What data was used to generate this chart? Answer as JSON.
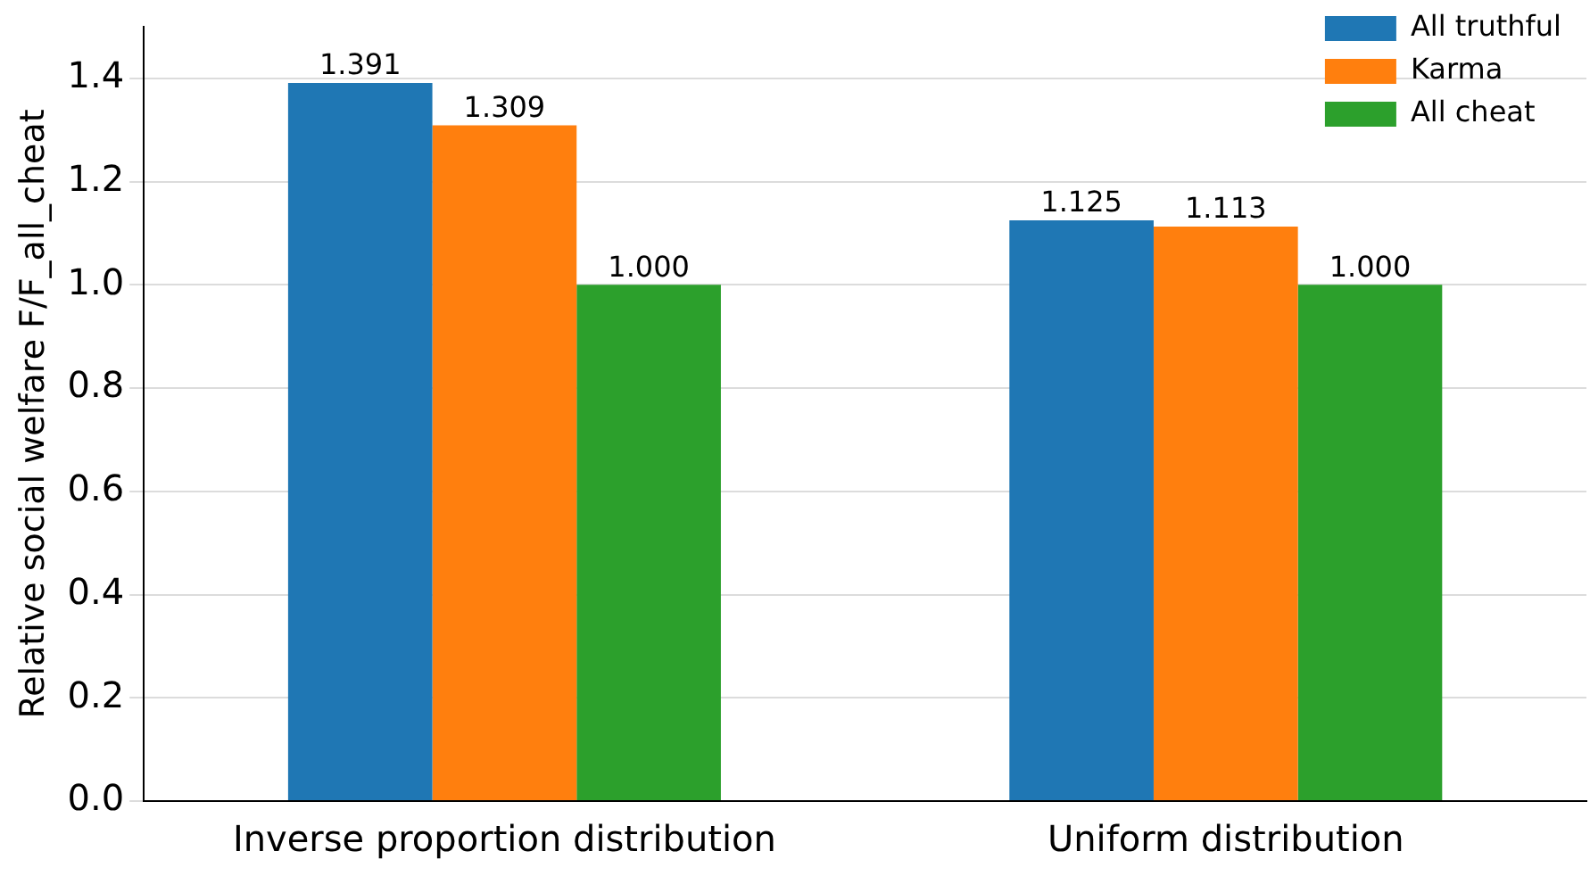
{
  "chart_data": {
    "type": "bar",
    "ylabel": "Relative social welfare F/F_all_cheat",
    "categories": [
      "Inverse proportion distribution",
      "Uniform distribution"
    ],
    "series": [
      {
        "name": "All truthful",
        "color": "#1f77b4",
        "values": [
          1.391,
          1.125
        ],
        "value_labels": [
          "1.391",
          "1.125"
        ]
      },
      {
        "name": "Karma",
        "color": "#ff7f0e",
        "values": [
          1.309,
          1.113
        ],
        "value_labels": [
          "1.309",
          "1.113"
        ]
      },
      {
        "name": "All cheat",
        "color": "#2ca02c",
        "values": [
          1.0,
          1.0
        ],
        "value_labels": [
          "1.000",
          "1.000"
        ]
      }
    ],
    "ylim": [
      0,
      1.5
    ],
    "yticks": [
      {
        "value": 0,
        "label": "0.0"
      },
      {
        "value": 0.2,
        "label": "0.2"
      },
      {
        "value": 0.4,
        "label": "0.4"
      },
      {
        "value": 0.6,
        "label": "0.6"
      },
      {
        "value": 0.8,
        "label": "0.8"
      },
      {
        "value": 1.0,
        "label": "1.0"
      },
      {
        "value": 1.2,
        "label": "1.2"
      },
      {
        "value": 1.4,
        "label": "1.4"
      }
    ],
    "grid": "y",
    "legend": "top right"
  }
}
